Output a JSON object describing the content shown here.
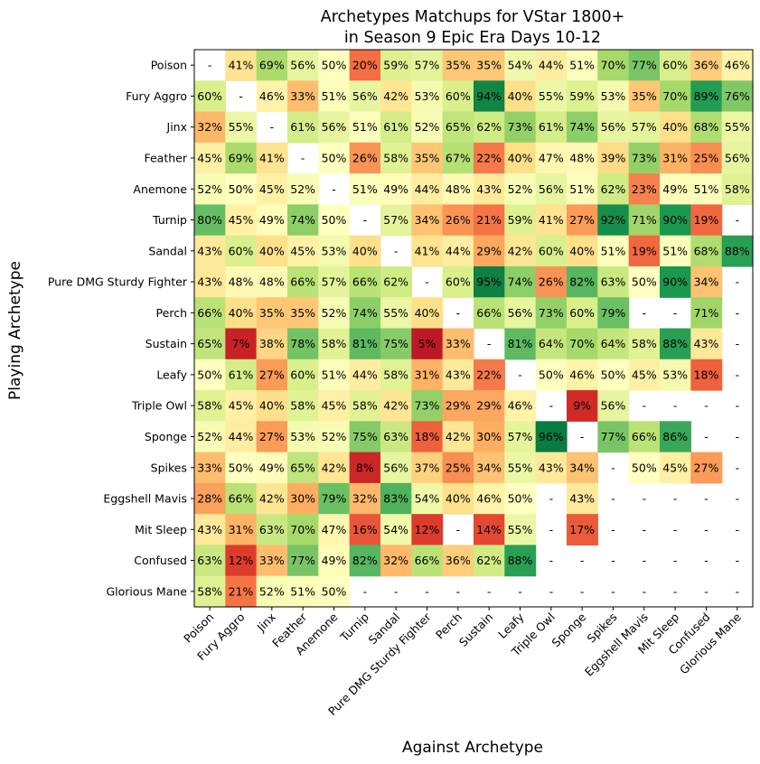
{
  "chart_data": {
    "type": "heatmap",
    "title_line1": "Archetypes Matchups for VStar 1800+",
    "title_line2": "in Season 9 Epic Era Days 10-12",
    "xlabel": "Against Archetype",
    "ylabel": "Playing Archetype",
    "rows": [
      "Poison",
      "Fury Aggro",
      "Jinx",
      "Feather",
      "Anemone",
      "Turnip",
      "Sandal",
      "Pure DMG Sturdy Fighter",
      "Perch",
      "Sustain",
      "Leafy",
      "Triple Owl",
      "Sponge",
      "Spikes",
      "Eggshell Mavis",
      "Mit Sleep",
      "Confused",
      "Glorious Mane"
    ],
    "columns": [
      "Poison",
      "Fury Aggro",
      "Jinx",
      "Feather",
      "Anemone",
      "Turnip",
      "Sandal",
      "Pure DMG Sturdy Fighter",
      "Perch",
      "Sustain",
      "Leafy",
      "Triple Owl",
      "Sponge",
      "Spikes",
      "Eggshell Mavis",
      "Mit Sleep",
      "Confused",
      "Glorious Mane"
    ],
    "colormap": "RdYlGn",
    "vmin": 0,
    "vmax": 100,
    "missing_label": "-",
    "unit": "%",
    "values": [
      [
        null,
        41,
        69,
        56,
        50,
        20,
        59,
        57,
        35,
        35,
        54,
        44,
        51,
        70,
        77,
        60,
        36,
        46
      ],
      [
        60,
        null,
        46,
        33,
        51,
        56,
        42,
        53,
        60,
        94,
        40,
        55,
        59,
        53,
        35,
        70,
        89,
        76
      ],
      [
        32,
        55,
        null,
        61,
        56,
        51,
        61,
        52,
        65,
        62,
        73,
        61,
        74,
        56,
        57,
        40,
        68,
        55
      ],
      [
        45,
        69,
        41,
        null,
        50,
        26,
        58,
        35,
        67,
        22,
        40,
        47,
        48,
        39,
        73,
        31,
        25,
        56
      ],
      [
        52,
        50,
        45,
        52,
        null,
        51,
        49,
        44,
        48,
        43,
        52,
        56,
        51,
        62,
        23,
        49,
        51,
        58
      ],
      [
        80,
        45,
        49,
        74,
        50,
        null,
        57,
        34,
        26,
        21,
        59,
        41,
        27,
        92,
        71,
        90,
        19,
        null
      ],
      [
        43,
        60,
        40,
        45,
        53,
        40,
        null,
        41,
        44,
        29,
        42,
        60,
        40,
        51,
        19,
        51,
        68,
        88
      ],
      [
        43,
        48,
        48,
        66,
        57,
        66,
        62,
        null,
        60,
        95,
        74,
        26,
        82,
        63,
        50,
        90,
        34,
        null
      ],
      [
        66,
        40,
        35,
        35,
        52,
        74,
        55,
        40,
        null,
        66,
        56,
        73,
        60,
        79,
        null,
        null,
        71,
        null
      ],
      [
        65,
        7,
        38,
        78,
        58,
        81,
        75,
        5,
        33,
        null,
        81,
        64,
        70,
        64,
        58,
        88,
        43,
        null
      ],
      [
        50,
        61,
        27,
        60,
        51,
        44,
        58,
        31,
        43,
        22,
        null,
        50,
        46,
        50,
        45,
        53,
        18,
        null
      ],
      [
        58,
        45,
        40,
        58,
        45,
        58,
        42,
        73,
        29,
        29,
        46,
        null,
        9,
        56,
        null,
        null,
        null,
        null
      ],
      [
        52,
        44,
        27,
        53,
        52,
        75,
        63,
        18,
        42,
        30,
        57,
        96,
        null,
        77,
        66,
        86,
        null,
        null
      ],
      [
        33,
        50,
        49,
        65,
        42,
        8,
        56,
        37,
        25,
        34,
        55,
        43,
        34,
        null,
        50,
        45,
        27,
        null
      ],
      [
        28,
        66,
        42,
        30,
        79,
        32,
        83,
        54,
        40,
        46,
        50,
        null,
        43,
        null,
        null,
        null,
        null,
        null
      ],
      [
        43,
        31,
        63,
        70,
        47,
        16,
        54,
        12,
        null,
        14,
        55,
        null,
        17,
        null,
        null,
        null,
        null,
        null
      ],
      [
        63,
        12,
        33,
        77,
        49,
        82,
        32,
        66,
        36,
        62,
        88,
        null,
        null,
        null,
        null,
        null,
        null,
        null
      ],
      [
        58,
        21,
        52,
        51,
        50,
        null,
        null,
        null,
        null,
        null,
        null,
        null,
        null,
        null,
        null,
        null,
        null,
        null
      ]
    ]
  }
}
